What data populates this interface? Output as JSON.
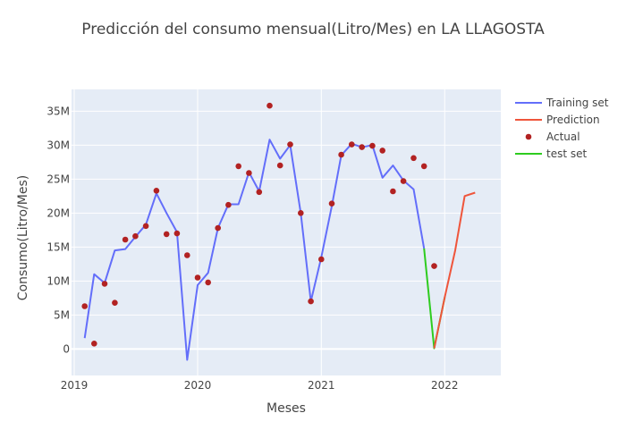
{
  "chart_data": {
    "type": "line",
    "title": "Predicción del consumo mensual(Litro/Mes) en LA LLAGOSTA",
    "xlabel": "Meses",
    "ylabel": "Consumo(Litro/Mes)",
    "x_tick_labels": [
      "2019",
      "2020",
      "2021",
      "2022"
    ],
    "y_tick_labels": [
      "0",
      "5M",
      "10M",
      "15M",
      "20M",
      "25M",
      "30M",
      "35M"
    ],
    "y_tick_values": [
      0,
      5000000,
      10000000,
      15000000,
      20000000,
      25000000,
      30000000,
      35000000
    ],
    "xlim": [
      "2018-12-24",
      "2022-06-16"
    ],
    "ylim": [
      -3900000,
      38200000
    ],
    "grid": true,
    "legend_position": "top-right",
    "series": [
      {
        "name": "Training set",
        "mode": "line",
        "color": "#636efa",
        "points": [
          [
            "2019-02-01",
            1600000
          ],
          [
            "2019-03-01",
            11000000
          ],
          [
            "2019-04-01",
            9700000
          ],
          [
            "2019-05-01",
            14500000
          ],
          [
            "2019-06-01",
            14700000
          ],
          [
            "2019-07-01",
            16500000
          ],
          [
            "2019-08-01",
            18300000
          ],
          [
            "2019-09-01",
            22900000
          ],
          [
            "2019-10-01",
            20000000
          ],
          [
            "2019-11-01",
            17200000
          ],
          [
            "2019-12-01",
            -1600000
          ],
          [
            "2020-01-01",
            9400000
          ],
          [
            "2020-02-01",
            11200000
          ],
          [
            "2020-03-01",
            17800000
          ],
          [
            "2020-04-01",
            21300000
          ],
          [
            "2020-05-01",
            21300000
          ],
          [
            "2020-06-01",
            26000000
          ],
          [
            "2020-07-01",
            23200000
          ],
          [
            "2020-08-01",
            30800000
          ],
          [
            "2020-09-01",
            28000000
          ],
          [
            "2020-10-01",
            30000000
          ],
          [
            "2020-11-01",
            20000000
          ],
          [
            "2020-12-01",
            7000000
          ],
          [
            "2021-01-01",
            13500000
          ],
          [
            "2021-02-01",
            21000000
          ],
          [
            "2021-03-01",
            28500000
          ],
          [
            "2021-04-01",
            30200000
          ],
          [
            "2021-05-01",
            29700000
          ],
          [
            "2021-06-01",
            30000000
          ],
          [
            "2021-07-01",
            25200000
          ],
          [
            "2021-08-01",
            27000000
          ],
          [
            "2021-09-01",
            24800000
          ],
          [
            "2021-10-01",
            23500000
          ],
          [
            "2021-11-01",
            14800000
          ]
        ]
      },
      {
        "name": "Prediction",
        "mode": "line",
        "color": "#ef553b",
        "points": [
          [
            "2021-12-01",
            100000
          ],
          [
            "2022-01-01",
            7600000
          ],
          [
            "2022-02-01",
            14500000
          ],
          [
            "2022-03-01",
            22500000
          ],
          [
            "2022-04-01",
            23000000
          ]
        ]
      },
      {
        "name": "Actual",
        "mode": "markers",
        "color": "#b22222",
        "points": [
          [
            "2019-02-01",
            6300000
          ],
          [
            "2019-03-01",
            800000
          ],
          [
            "2019-04-01",
            9600000
          ],
          [
            "2019-05-01",
            6800000
          ],
          [
            "2019-06-01",
            16100000
          ],
          [
            "2019-07-01",
            16600000
          ],
          [
            "2019-08-01",
            18100000
          ],
          [
            "2019-09-01",
            23300000
          ],
          [
            "2019-10-01",
            16900000
          ],
          [
            "2019-11-01",
            17000000
          ],
          [
            "2019-12-01",
            13800000
          ],
          [
            "2020-01-01",
            10500000
          ],
          [
            "2020-02-01",
            9800000
          ],
          [
            "2020-03-01",
            17800000
          ],
          [
            "2020-04-01",
            21200000
          ],
          [
            "2020-05-01",
            26900000
          ],
          [
            "2020-06-01",
            25900000
          ],
          [
            "2020-07-01",
            23100000
          ],
          [
            "2020-08-01",
            35800000
          ],
          [
            "2020-09-01",
            27000000
          ],
          [
            "2020-10-01",
            30100000
          ],
          [
            "2020-11-01",
            20000000
          ],
          [
            "2020-12-01",
            7000000
          ],
          [
            "2021-01-01",
            13200000
          ],
          [
            "2021-02-01",
            21400000
          ],
          [
            "2021-03-01",
            28600000
          ],
          [
            "2021-04-01",
            30100000
          ],
          [
            "2021-05-01",
            29700000
          ],
          [
            "2021-06-01",
            29900000
          ],
          [
            "2021-07-01",
            29200000
          ],
          [
            "2021-08-01",
            23200000
          ],
          [
            "2021-09-01",
            24700000
          ],
          [
            "2021-10-01",
            28100000
          ],
          [
            "2021-11-01",
            26900000
          ],
          [
            "2021-12-01",
            12200000
          ]
        ]
      },
      {
        "name": "test set",
        "mode": "line",
        "color": "#2ecc1f",
        "points": [
          [
            "2021-11-01",
            14800000
          ],
          [
            "2021-12-01",
            100000
          ],
          [
            "2022-01-01",
            7600000
          ]
        ]
      }
    ]
  }
}
